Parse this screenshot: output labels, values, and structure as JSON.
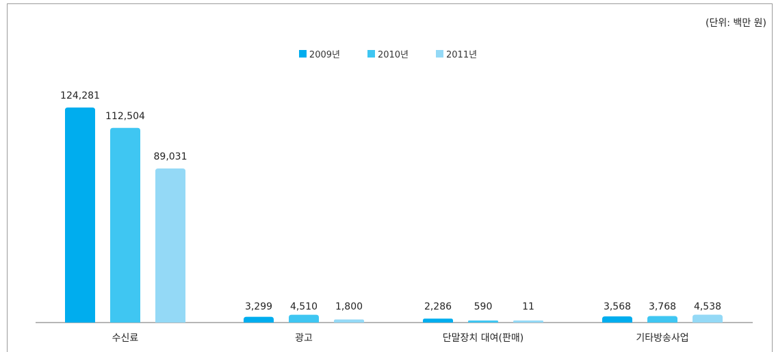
{
  "unit_label": "(단위: 백만 원)",
  "colors": [
    "#00adee",
    "#3fc6f2",
    "#94d9f6"
  ],
  "chart_data": {
    "type": "bar",
    "title": "",
    "xlabel": "",
    "ylabel": "",
    "categories": [
      "수신료",
      "광고",
      "단말장치 대여(판매)",
      "기타방송사업"
    ],
    "series": [
      {
        "name": "2009년",
        "values": [
          124281,
          3299,
          2286,
          3568
        ],
        "labels": [
          "124,281",
          "3,299",
          "2,286",
          "3,568"
        ]
      },
      {
        "name": "2010년",
        "values": [
          112504,
          4510,
          590,
          3768
        ],
        "labels": [
          "112,504",
          "4,510",
          "590",
          "3,768"
        ]
      },
      {
        "name": "2011년",
        "values": [
          89031,
          1800,
          11,
          4538
        ],
        "labels": [
          "89,031",
          "1,800",
          "11",
          "4,538"
        ]
      }
    ],
    "ylim": [
      0,
      130000
    ],
    "grid": false,
    "legend_position": "top-center"
  }
}
